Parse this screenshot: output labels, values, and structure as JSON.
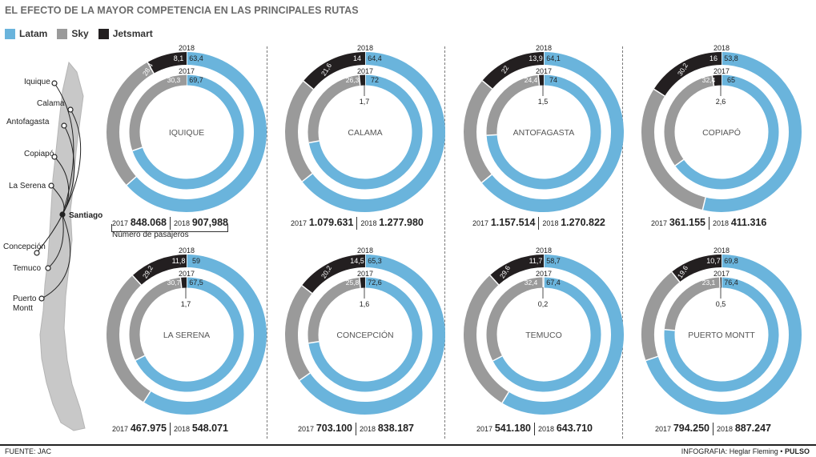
{
  "title": "EL EFECTO DE LA MAYOR COMPETENCIA EN LAS PRINCIPALES RUTAS",
  "legend": [
    {
      "label": "Latam",
      "color": "#6ab4dc"
    },
    {
      "label": "Sky",
      "color": "#9a9a9a"
    },
    {
      "label": "Jetsmart",
      "color": "#231f20"
    }
  ],
  "map": {
    "hub": "Santiago",
    "cities": [
      "Iquique",
      "Calama",
      "Antofagasta",
      "Copiapó",
      "La Serena",
      "Concepción",
      "Temuco",
      "Puerto\nMontt"
    ]
  },
  "year_outer": "2018",
  "year_inner": "2017",
  "totals_note": "Número de pasajeros",
  "chart_data": [
    {
      "type": "pie",
      "route": "IQUIQUE",
      "y2018": {
        "Latam": 63.4,
        "Sky": 28.4,
        "Jetsmart": 8.1
      },
      "y2017": {
        "Latam": 69.7,
        "Sky": 30.3,
        "Jetsmart": 0
      },
      "passengers": {
        "2017": "848.068",
        "2018": "907,988"
      }
    },
    {
      "type": "pie",
      "route": "CALAMA",
      "y2018": {
        "Latam": 64.4,
        "Sky": 21.6,
        "Jetsmart": 14
      },
      "y2017": {
        "Latam": 72,
        "Sky": 26.3,
        "Jetsmart": 1.7
      },
      "passengers": {
        "2017": "1.079.631",
        "2018": "1.277.980"
      }
    },
    {
      "type": "pie",
      "route": "ANTOFAGASTA",
      "y2018": {
        "Latam": 64.1,
        "Sky": 22,
        "Jetsmart": 13.9
      },
      "y2017": {
        "Latam": 74,
        "Sky": 24.4,
        "Jetsmart": 1.5
      },
      "passengers": {
        "2017": "1.157.514",
        "2018": "1.270.822"
      }
    },
    {
      "type": "pie",
      "route": "COPIAPÓ",
      "y2018": {
        "Latam": 53.8,
        "Sky": 30.2,
        "Jetsmart": 16
      },
      "y2017": {
        "Latam": 65,
        "Sky": 32.4,
        "Jetsmart": 2.6
      },
      "passengers": {
        "2017": "361.155",
        "2018": "411.316"
      }
    },
    {
      "type": "pie",
      "route": "LA SERENA",
      "y2018": {
        "Latam": 59,
        "Sky": 29.2,
        "Jetsmart": 11.8
      },
      "y2017": {
        "Latam": 67.5,
        "Sky": 30.7,
        "Jetsmart": 1.7
      },
      "passengers": {
        "2017": "467.975",
        "2018": "548.071"
      }
    },
    {
      "type": "pie",
      "route": "CONCEPCIÓN",
      "y2018": {
        "Latam": 65.3,
        "Sky": 20.2,
        "Jetsmart": 14.5
      },
      "y2017": {
        "Latam": 72.6,
        "Sky": 25.8,
        "Jetsmart": 1.6
      },
      "passengers": {
        "2017": "703.100",
        "2018": "838.187"
      }
    },
    {
      "type": "pie",
      "route": "TEMUCO",
      "y2018": {
        "Latam": 58.7,
        "Sky": 29.6,
        "Jetsmart": 11.7
      },
      "y2017": {
        "Latam": 67.4,
        "Sky": 32.4,
        "Jetsmart": 0.2
      },
      "passengers": {
        "2017": "541.180",
        "2018": "643.710"
      }
    },
    {
      "type": "pie",
      "route": "PUERTO MONTT",
      "y2018": {
        "Latam": 69.8,
        "Sky": 19.6,
        "Jetsmart": 10.7
      },
      "y2017": {
        "Latam": 76.4,
        "Sky": 23.1,
        "Jetsmart": 0.5
      },
      "passengers": {
        "2017": "794.250",
        "2018": "887.247"
      }
    }
  ],
  "labels_2018": [
    {
      "jet": "8,1",
      "latam": "63,4",
      "sky": "28,4"
    },
    {
      "jet": "14",
      "latam": "64,4",
      "sky": "21,6"
    },
    {
      "jet": "13,9",
      "latam": "64,1",
      "sky": "22"
    },
    {
      "jet": "16",
      "latam": "53,8",
      "sky": "30,2"
    },
    {
      "jet": "11,8",
      "latam": "59",
      "sky": "29,2"
    },
    {
      "jet": "14,5",
      "latam": "65,3",
      "sky": "20,2"
    },
    {
      "jet": "11,7",
      "latam": "58,7",
      "sky": "29,6"
    },
    {
      "jet": "10,7",
      "latam": "69,8",
      "sky": "19,6"
    }
  ],
  "labels_2017": [
    {
      "jet": "",
      "latam": "69,7",
      "sky": "30,3"
    },
    {
      "jet": "1,7",
      "latam": "72",
      "sky": "26,3"
    },
    {
      "jet": "1,5",
      "latam": "74",
      "sky": "24,4"
    },
    {
      "jet": "2,6",
      "latam": "65",
      "sky": "32,4"
    },
    {
      "jet": "1,7",
      "latam": "67,5",
      "sky": "30,7"
    },
    {
      "jet": "1,6",
      "latam": "72,6",
      "sky": "25,8"
    },
    {
      "jet": "0,2",
      "latam": "67,4",
      "sky": "32,4"
    },
    {
      "jet": "0,5",
      "latam": "76,4",
      "sky": "23,1"
    }
  ],
  "footer": {
    "source": "FUENTE: JAC",
    "credit": "INFOGRAFIA: Heglar Fleming •",
    "brand": "PULSO"
  }
}
